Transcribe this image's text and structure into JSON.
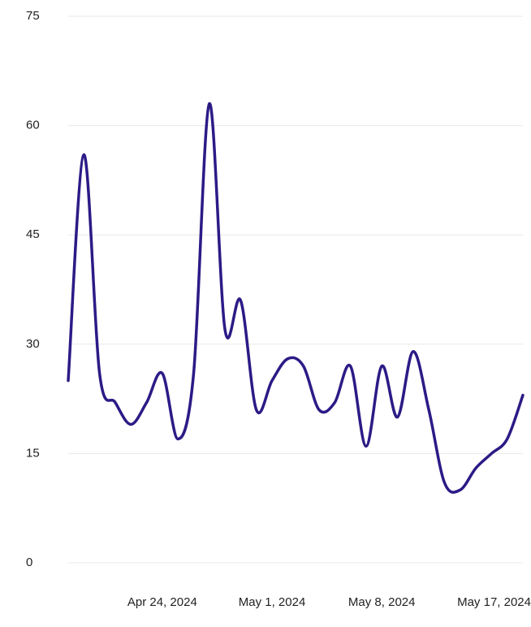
{
  "chart_data": {
    "type": "line",
    "x": [
      "2024-04-18",
      "2024-04-19",
      "2024-04-20",
      "2024-04-21",
      "2024-04-22",
      "2024-04-23",
      "2024-04-24",
      "2024-04-25",
      "2024-04-26",
      "2024-04-27",
      "2024-04-28",
      "2024-04-29",
      "2024-04-30",
      "2024-05-01",
      "2024-05-02",
      "2024-05-03",
      "2024-05-04",
      "2024-05-05",
      "2024-05-06",
      "2024-05-07",
      "2024-05-08",
      "2024-05-09",
      "2024-05-10",
      "2024-05-11",
      "2024-05-12",
      "2024-05-13",
      "2024-05-14",
      "2024-05-15",
      "2024-05-16",
      "2024-05-17"
    ],
    "series": [
      {
        "color": "#2b1b86",
        "values": [
          25,
          56,
          26,
          22,
          19,
          22,
          26,
          17,
          26,
          63,
          32,
          36,
          21,
          25,
          28,
          27,
          21,
          22,
          27,
          16,
          27,
          20,
          29,
          21,
          11,
          10,
          13,
          15,
          17,
          23
        ]
      }
    ],
    "xlim": [
      "2024-04-18",
      "2024-05-17"
    ],
    "xticks": [
      {
        "value": "2024-04-24",
        "label": "Apr 24, 2024"
      },
      {
        "value": "2024-05-01",
        "label": "May 1, 2024"
      },
      {
        "value": "2024-05-08",
        "label": "May 8, 2024"
      },
      {
        "value": "2024-05-17",
        "label": "May 17, 2024"
      }
    ],
    "ylim": [
      0,
      75
    ],
    "yticks": [
      0,
      15,
      30,
      45,
      60,
      75
    ],
    "grid": true
  }
}
